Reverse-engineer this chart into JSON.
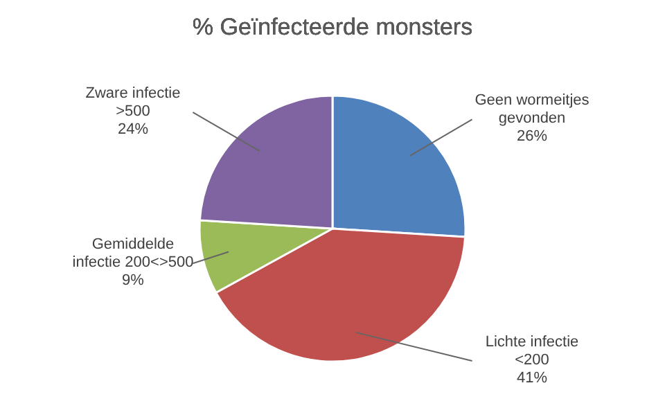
{
  "chart_data": {
    "type": "pie",
    "title": "% Geïnfecteerde monsters",
    "categories": [
      "Geen wormeitjes\ngevonden",
      "Lichte infectie\n<200",
      "Gemiddelde\ninfectie 200<>500",
      "Zware infectie\n>500"
    ],
    "values": [
      26,
      41,
      9,
      24
    ],
    "colors": [
      "#4f81bd",
      "#c0504d",
      "#9bbb59",
      "#8064a2"
    ],
    "value_labels": [
      "26%",
      "41%",
      "9%",
      "24%"
    ]
  }
}
